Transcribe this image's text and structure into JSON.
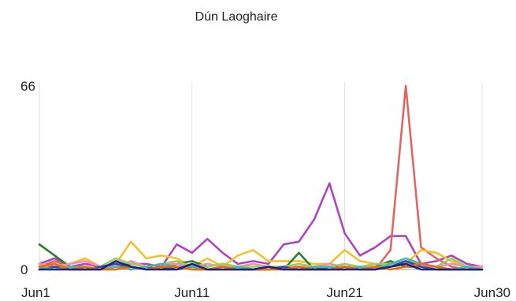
{
  "chart_data": {
    "type": "line",
    "title": "Dún Laoghaire",
    "xlabel": "",
    "ylabel": "",
    "x_range": [
      1,
      30
    ],
    "ylim": [
      0,
      66
    ],
    "y_ticks": [
      {
        "value": 66,
        "label": "66"
      },
      {
        "value": 0,
        "label": "0"
      }
    ],
    "x_ticks": [
      {
        "day": 1,
        "label": "Jun1"
      },
      {
        "day": 11,
        "label": "Jun11"
      },
      {
        "day": 21,
        "label": "Jun21"
      },
      {
        "day": 30,
        "label": "Jun30"
      }
    ],
    "grid": true,
    "legend": "none",
    "series": [
      {
        "color": "#ab47bc",
        "x": [
          1,
          2,
          3,
          4,
          5,
          6,
          7,
          8,
          9,
          10,
          11,
          12,
          13,
          14,
          15,
          16,
          17,
          18,
          19,
          20,
          21,
          22,
          23,
          24,
          25,
          26,
          27,
          28,
          29,
          30
        ],
        "values": [
          2,
          4,
          1,
          2,
          1,
          1,
          2,
          2,
          1,
          9,
          6,
          11,
          6,
          2,
          3,
          2,
          9,
          10,
          18,
          31,
          13,
          5,
          8,
          12,
          12,
          2,
          3,
          5,
          2,
          1
        ]
      },
      {
        "color": "#e06666",
        "x": [
          1,
          2,
          3,
          4,
          5,
          6,
          7,
          8,
          9,
          10,
          11,
          12,
          13,
          14,
          15,
          16,
          17,
          18,
          19,
          20,
          21,
          22,
          23,
          24,
          25,
          26,
          27,
          28,
          29,
          30
        ],
        "values": [
          1,
          3,
          1,
          0,
          1,
          2,
          0,
          1,
          0,
          1,
          0,
          0,
          1,
          0,
          0,
          0,
          1,
          0,
          1,
          0,
          0,
          1,
          0,
          7,
          66,
          8,
          4,
          1,
          0,
          1
        ]
      },
      {
        "color": "#f2c12e",
        "x": [
          1,
          2,
          3,
          4,
          5,
          6,
          7,
          8,
          9,
          10,
          11,
          12,
          13,
          14,
          15,
          16,
          17,
          18,
          19,
          20,
          21,
          22,
          23,
          24,
          25,
          26,
          27,
          28,
          29,
          30
        ],
        "values": [
          1,
          1,
          2,
          4,
          1,
          2,
          10,
          4,
          5,
          4,
          1,
          4,
          1,
          5,
          7,
          3,
          3,
          3,
          2,
          2,
          7,
          3,
          2,
          1,
          2,
          7,
          6,
          3,
          1,
          1
        ]
      },
      {
        "color": "#2e7d32",
        "x": [
          1,
          2,
          3,
          4,
          5,
          6,
          7,
          8,
          9,
          10,
          11,
          12,
          13,
          14,
          15,
          16,
          17,
          18,
          19,
          20,
          21,
          22,
          23,
          24,
          25,
          26,
          27,
          28,
          29,
          30
        ],
        "values": [
          9,
          5,
          1,
          0,
          0,
          1,
          2,
          1,
          0,
          2,
          3,
          1,
          2,
          1,
          0,
          1,
          0,
          6,
          0,
          1,
          1,
          0,
          1,
          3,
          1,
          1,
          0,
          0,
          0,
          0
        ]
      },
      {
        "color": "#f48fb1",
        "x": [
          1,
          2,
          3,
          4,
          5,
          6,
          7,
          8,
          9,
          10,
          11,
          12,
          13,
          14,
          15,
          16,
          17,
          18,
          19,
          20,
          21,
          22,
          23,
          24,
          25,
          26,
          27,
          28,
          29,
          30
        ],
        "values": [
          2,
          1,
          2,
          3,
          1,
          1,
          3,
          1,
          2,
          2,
          1,
          2,
          1,
          1,
          2,
          1,
          1,
          1,
          1,
          2,
          1,
          1,
          1,
          1,
          2,
          1,
          1,
          2,
          1,
          1
        ]
      },
      {
        "color": "#9ccc65",
        "x": [
          1,
          2,
          3,
          4,
          5,
          6,
          7,
          8,
          9,
          10,
          11,
          12,
          13,
          14,
          15,
          16,
          17,
          18,
          19,
          20,
          21,
          22,
          23,
          24,
          25,
          26,
          27,
          28,
          29,
          30
        ],
        "values": [
          0,
          1,
          1,
          0,
          1,
          4,
          2,
          1,
          2,
          3,
          1,
          1,
          2,
          1,
          1,
          1,
          1,
          2,
          1,
          1,
          2,
          1,
          2,
          2,
          3,
          2,
          1,
          4,
          1,
          0
        ]
      },
      {
        "color": "#3949ab",
        "x": [
          1,
          2,
          3,
          4,
          5,
          6,
          7,
          8,
          9,
          10,
          11,
          12,
          13,
          14,
          15,
          16,
          17,
          18,
          19,
          20,
          21,
          22,
          23,
          24,
          25,
          26,
          27,
          28,
          29,
          30
        ],
        "values": [
          0,
          1,
          0,
          0,
          1,
          2,
          1,
          0,
          1,
          0,
          1,
          0,
          0,
          0,
          0,
          0,
          1,
          0,
          0,
          0,
          1,
          0,
          0,
          1,
          3,
          1,
          0,
          0,
          0,
          0
        ]
      },
      {
        "color": "#4db6ac",
        "x": [
          1,
          2,
          3,
          4,
          5,
          6,
          7,
          8,
          9,
          10,
          11,
          12,
          13,
          14,
          15,
          16,
          17,
          18,
          19,
          20,
          21,
          22,
          23,
          24,
          25,
          26,
          27,
          28,
          29,
          30
        ],
        "values": [
          1,
          0,
          1,
          1,
          0,
          1,
          0,
          1,
          2,
          1,
          1,
          0,
          0,
          1,
          0,
          1,
          0,
          0,
          1,
          1,
          0,
          1,
          0,
          2,
          4,
          2,
          1,
          0,
          1,
          0
        ]
      },
      {
        "color": "#ef6c00",
        "x": [
          1,
          2,
          3,
          4,
          5,
          6,
          7,
          8,
          9,
          10,
          11,
          12,
          13,
          14,
          15,
          16,
          17,
          18,
          19,
          20,
          21,
          22,
          23,
          24,
          25,
          26,
          27,
          28,
          29,
          30
        ],
        "values": [
          1,
          2,
          0,
          1,
          0,
          0,
          1,
          0,
          1,
          1,
          0,
          0,
          1,
          0,
          0,
          0,
          0,
          1,
          0,
          0,
          1,
          0,
          1,
          0,
          1,
          2,
          1,
          0,
          0,
          0
        ]
      },
      {
        "color": "#1a237e",
        "x": [
          1,
          2,
          3,
          4,
          5,
          6,
          7,
          8,
          9,
          10,
          11,
          12,
          13,
          14,
          15,
          16,
          17,
          18,
          19,
          20,
          21,
          22,
          23,
          24,
          25,
          26,
          27,
          28,
          29,
          30
        ],
        "values": [
          0,
          0,
          0,
          0,
          0,
          3,
          1,
          0,
          0,
          0,
          2,
          0,
          0,
          0,
          0,
          1,
          0,
          0,
          0,
          0,
          0,
          0,
          0,
          1,
          2,
          0,
          0,
          0,
          0,
          0
        ]
      }
    ]
  }
}
